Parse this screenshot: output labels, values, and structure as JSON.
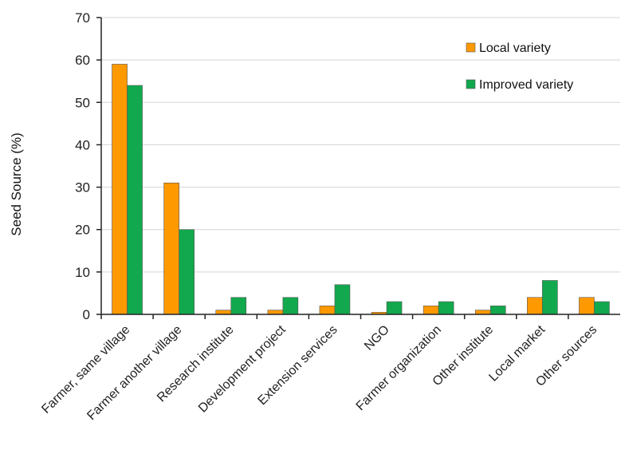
{
  "chart_data": {
    "type": "bar",
    "ylabel": "Seed Source (%)",
    "xlabel": "",
    "ylim": [
      0,
      70
    ],
    "yticks": [
      0,
      10,
      20,
      30,
      40,
      50,
      60,
      70
    ],
    "grid": true,
    "legend_position": "top-right",
    "categories": [
      "Farmer, same village",
      "Farmer another village",
      "Research institute",
      "Development project",
      "Extension services",
      "NGO",
      "Farmer organization",
      "Other institute",
      "Local market",
      "Other sources"
    ],
    "series": [
      {
        "name": "Local variety",
        "color": "#FF9900",
        "values": [
          59,
          31,
          1,
          1,
          2,
          0.5,
          2,
          1,
          4,
          4
        ]
      },
      {
        "name": "Improved variety",
        "color": "#12A84E",
        "values": [
          54,
          20,
          4,
          4,
          7,
          3,
          3,
          2,
          8,
          3
        ]
      }
    ]
  }
}
